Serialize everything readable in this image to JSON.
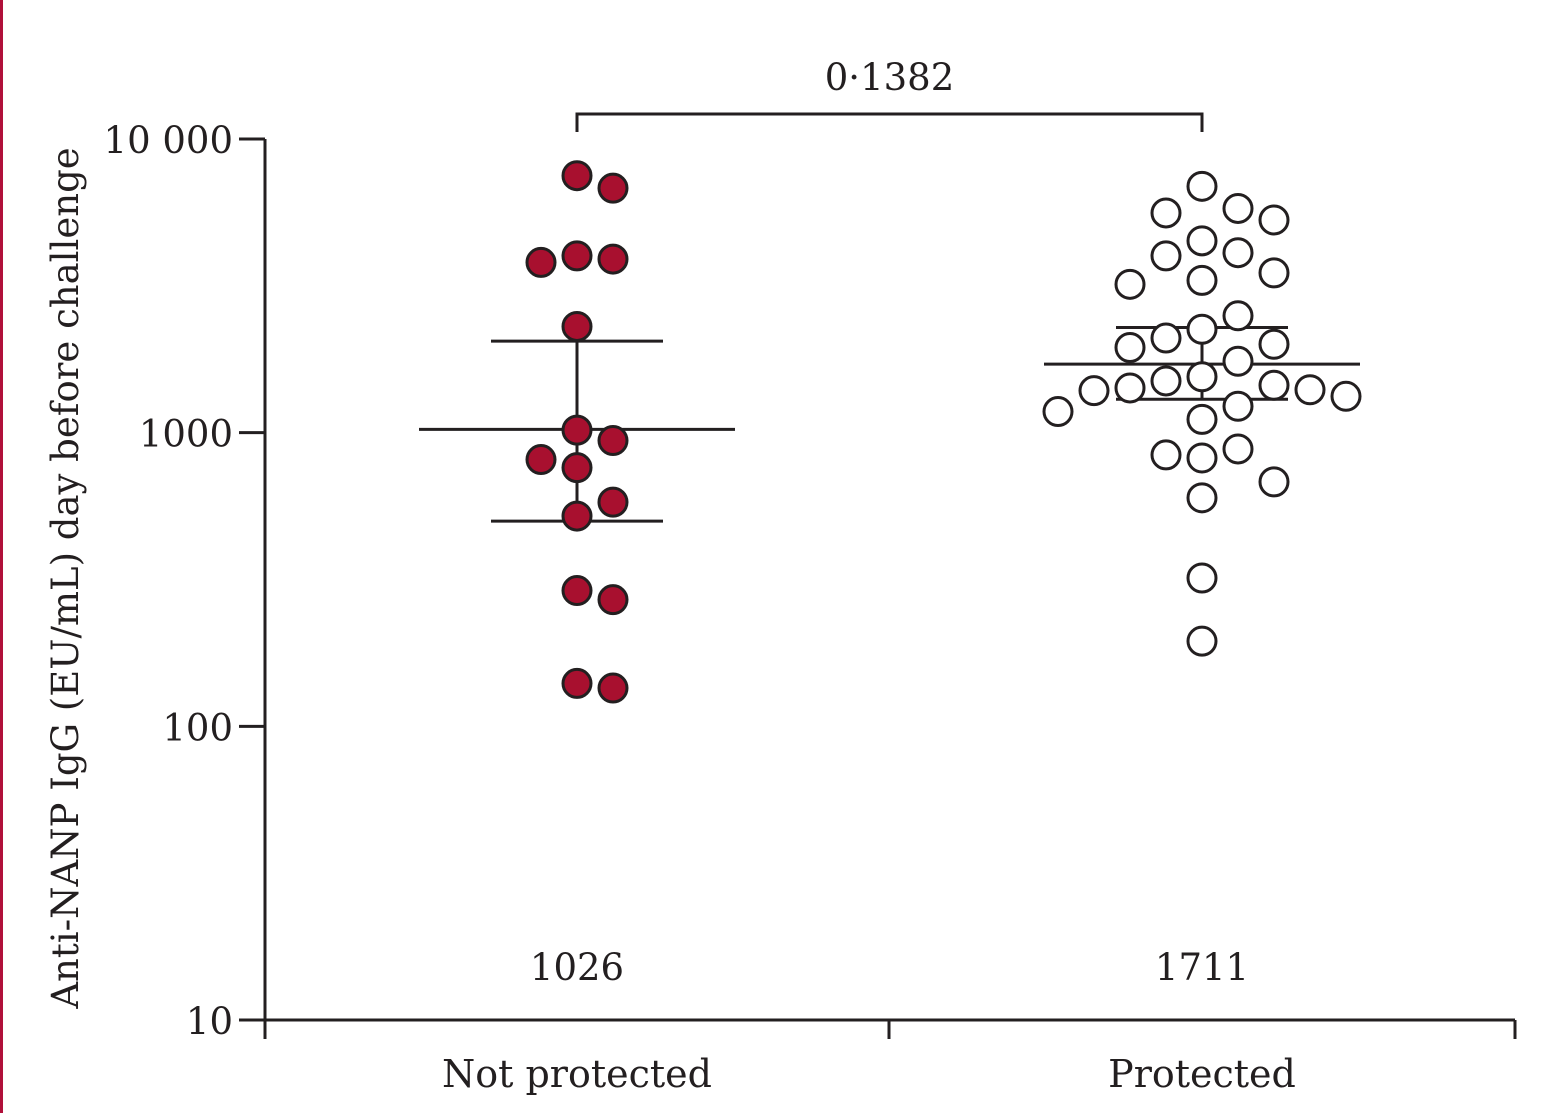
{
  "chart_data": {
    "type": "scatter",
    "ylabel": "Anti-NANP IgG (EU/mL) day before challenge",
    "yscale": "log",
    "ylim": [
      10,
      10000
    ],
    "yticks": [
      "10",
      "100",
      "1000",
      "10 000"
    ],
    "ytick_values": [
      10,
      100,
      1000,
      10000
    ],
    "categories": [
      "Not protected",
      "Protected"
    ],
    "comparison": {
      "label": "0·1382",
      "between": [
        "Not protected",
        "Protected"
      ]
    },
    "series": [
      {
        "category": "Not protected",
        "marker": "filled",
        "color": "#a8102f",
        "median_label": "1026",
        "median": 1026,
        "iqr": [
          500,
          2050
        ],
        "values": [
          7500,
          6800,
          4000,
          3800,
          3900,
          2300,
          1020,
          940,
          810,
          760,
          580,
          520,
          270,
          290,
          135,
          140
        ]
      },
      {
        "category": "Protected",
        "marker": "open",
        "color": "#ffffff",
        "median_label": "1711",
        "median": 1711,
        "iqr": [
          1300,
          2280
        ],
        "values": [
          6900,
          5300,
          5800,
          5600,
          4500,
          4100,
          4000,
          3300,
          3500,
          3200,
          2500,
          2250,
          2100,
          2000,
          1950,
          1750,
          1550,
          1500,
          1400,
          1450,
          1420,
          1390,
          1330,
          1230,
          1180,
          1110,
          880,
          840,
          820,
          680,
          600,
          320,
          195
        ]
      }
    ]
  }
}
